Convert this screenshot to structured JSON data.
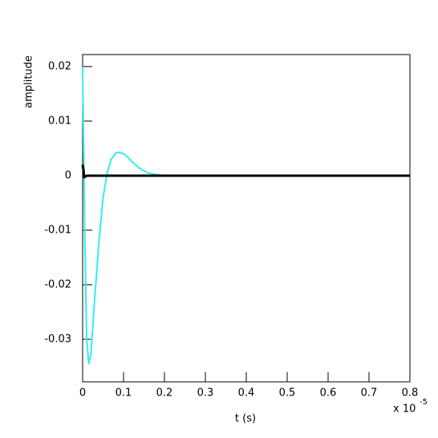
{
  "chart_data": {
    "type": "line",
    "y_label": "amplitude",
    "x_label": "t (s)",
    "x_multiplier_base": "x 10",
    "x_multiplier_exponent": "-5",
    "xlim": [
      0,
      0.8
    ],
    "ylim": [
      -0.0378,
      0.0222
    ],
    "xticks": [
      0,
      0.1,
      0.2,
      0.3,
      0.4,
      0.5,
      0.6,
      0.7,
      0.8
    ],
    "yticks": [
      -0.03,
      -0.02,
      -0.01,
      0,
      0.01,
      0.02
    ],
    "series": [
      {
        "color": "#33eeee",
        "width": 2,
        "x": [
          0,
          0.005,
          0.01,
          0.015,
          0.02,
          0.03,
          0.04,
          0.05,
          0.06,
          0.07,
          0.08,
          0.09,
          0.1,
          0.11,
          0.12,
          0.14,
          0.16,
          0.18,
          0.2,
          0.22
        ],
        "values": [
          0.02,
          -0.01,
          -0.03,
          -0.0345,
          -0.033,
          -0.022,
          -0.012,
          -0.004,
          0.0005,
          0.003,
          0.0041,
          0.0043,
          0.004,
          0.0034,
          0.0026,
          0.0013,
          0.0005,
          0.0002,
          0,
          0
        ]
      },
      {
        "color": "#000000",
        "width": 3,
        "x": [
          0,
          0.002,
          0.004,
          0.01,
          0.8
        ],
        "values": [
          0.002,
          0.001,
          -0.0003,
          0,
          0
        ]
      }
    ]
  }
}
